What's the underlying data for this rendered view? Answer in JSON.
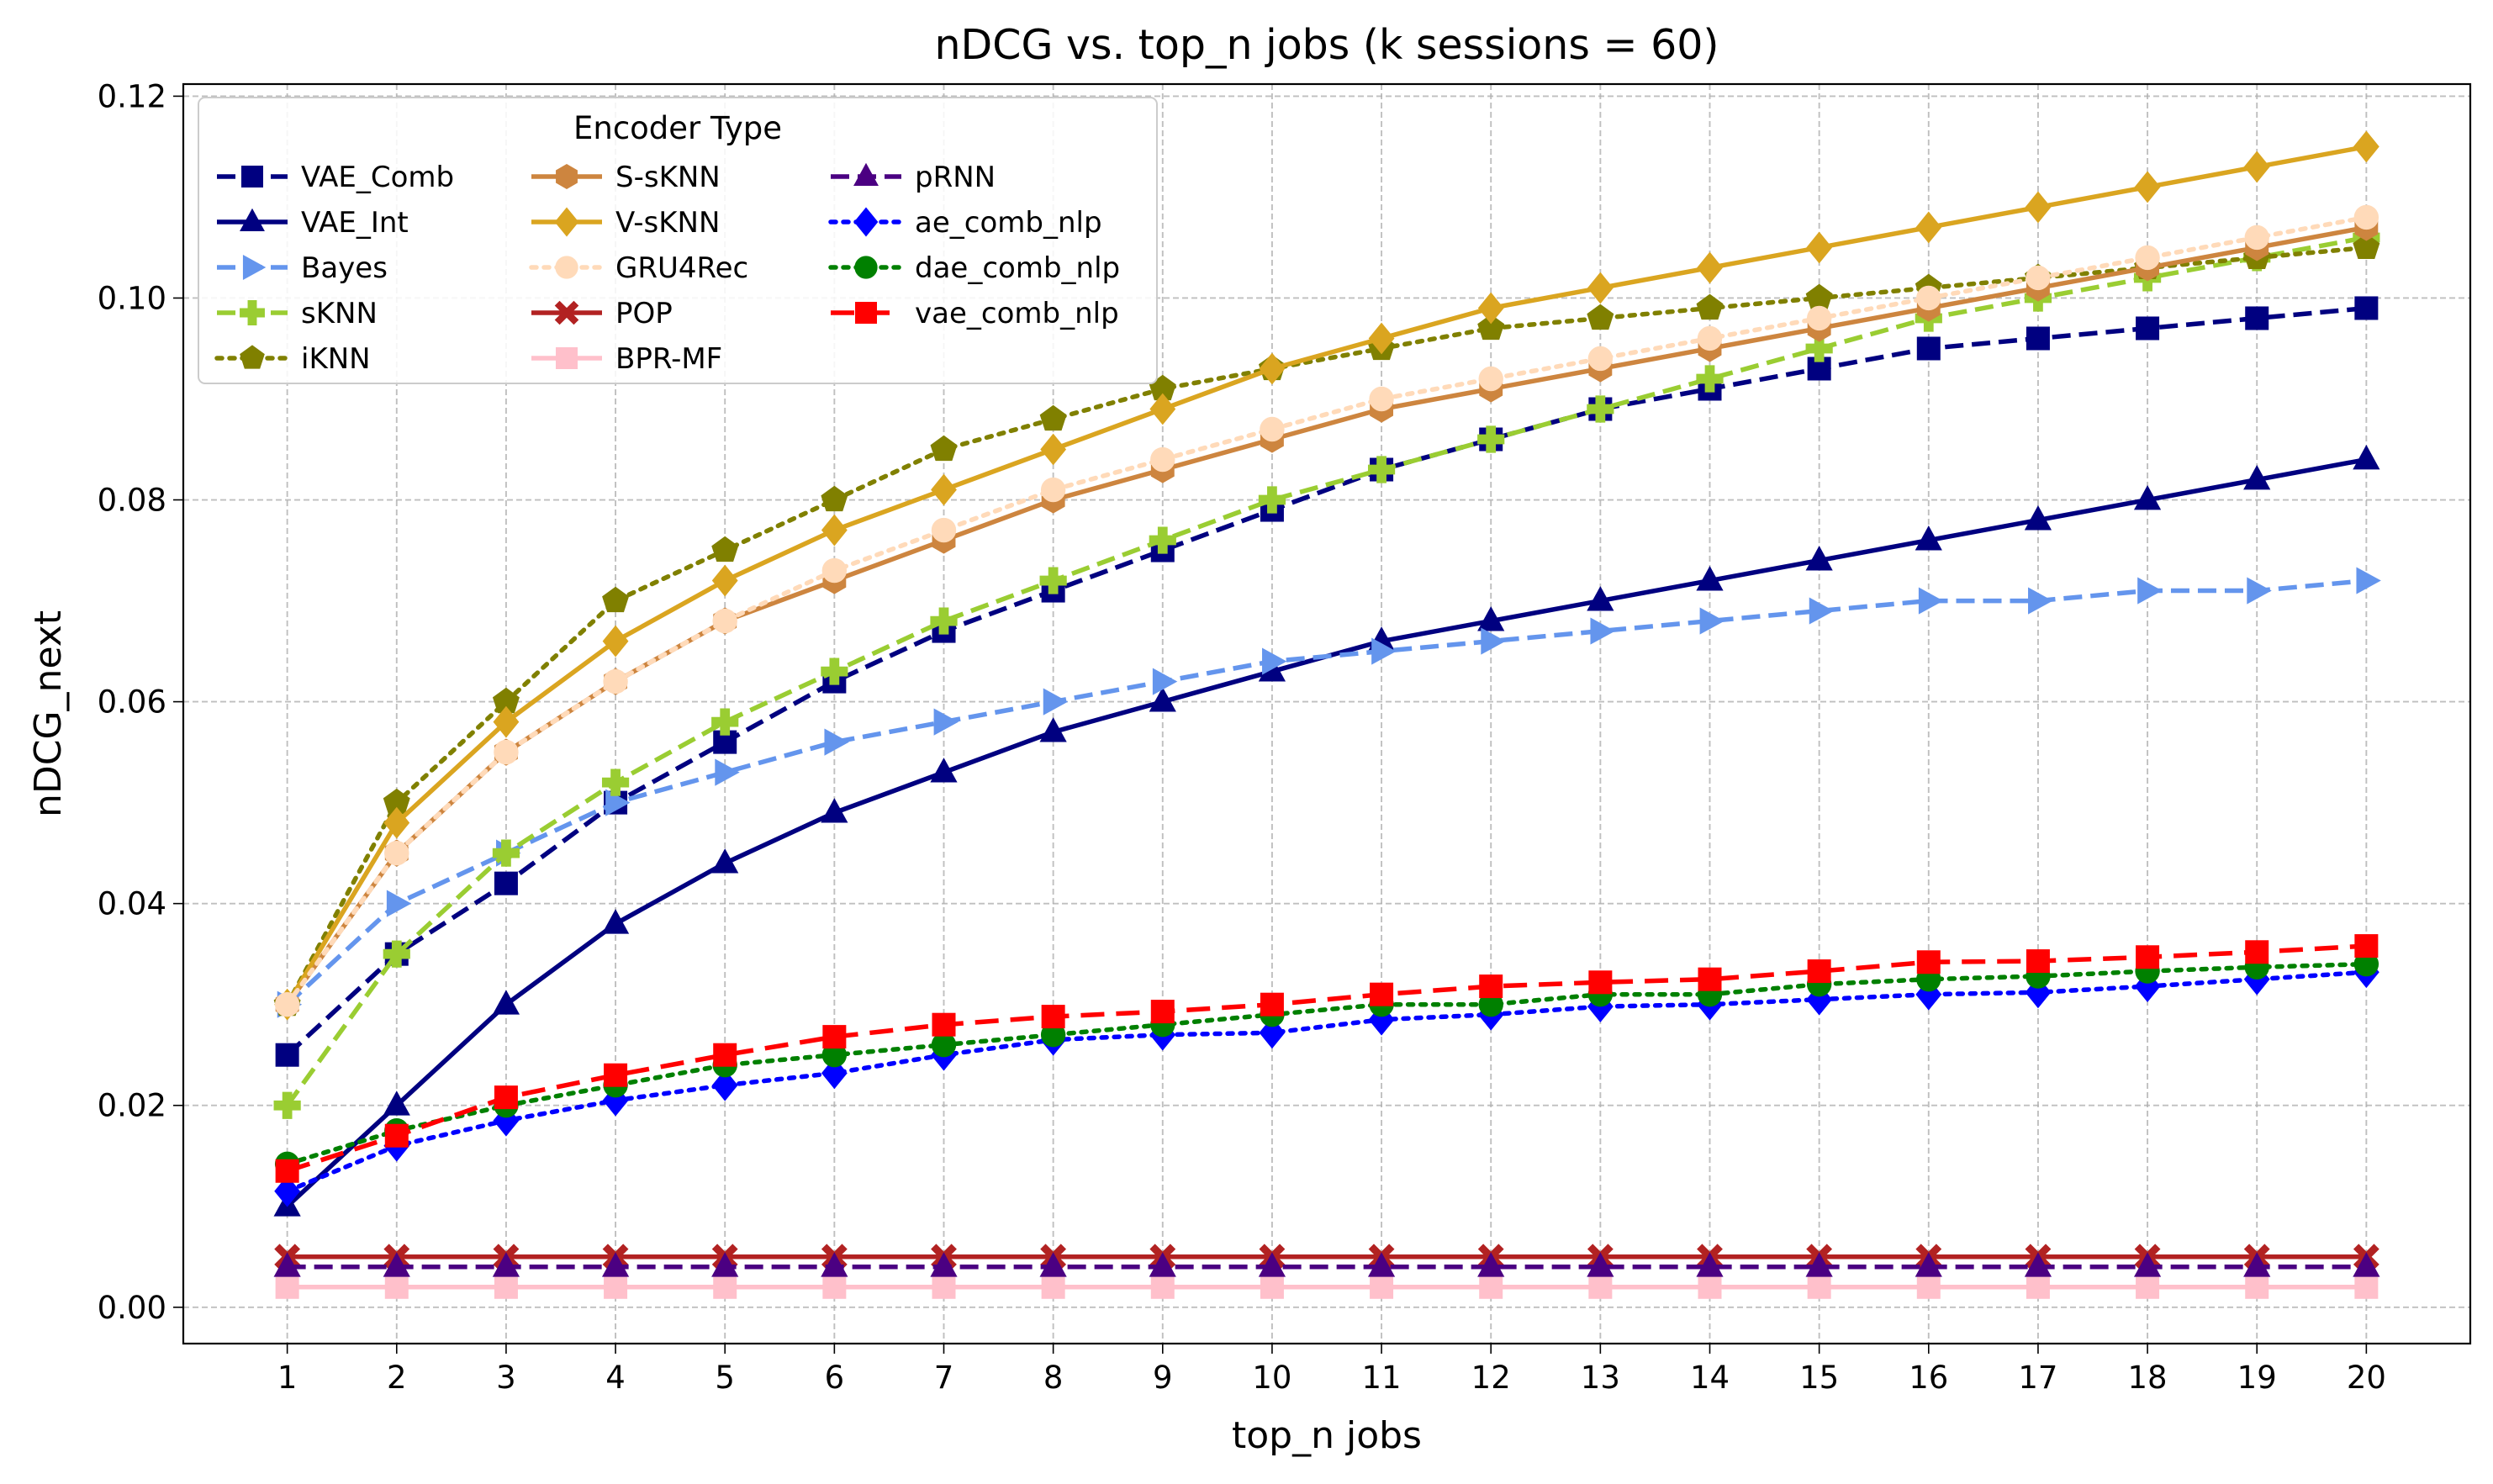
{
  "chart_data": {
    "type": "line",
    "title": "nDCG vs. top_n jobs (k sessions = 60)",
    "xlabel": "top_n jobs",
    "ylabel": "nDCG_next",
    "x": [
      1,
      2,
      3,
      4,
      5,
      6,
      7,
      8,
      9,
      10,
      11,
      12,
      13,
      14,
      15,
      16,
      17,
      18,
      19,
      20
    ],
    "xlim": [
      0.05,
      20.95
    ],
    "ylim": [
      -0.0036,
      0.1212
    ],
    "yticks": [
      0.0,
      0.02,
      0.04,
      0.06,
      0.08,
      0.1,
      0.12
    ],
    "ytick_labels": [
      "0.00",
      "0.02",
      "0.04",
      "0.06",
      "0.08",
      "0.10",
      "0.12"
    ],
    "xtick_labels": [
      "1",
      "2",
      "3",
      "4",
      "5",
      "6",
      "7",
      "8",
      "9",
      "10",
      "11",
      "12",
      "13",
      "14",
      "15",
      "16",
      "17",
      "18",
      "19",
      "20"
    ],
    "grid": true,
    "legend": {
      "title": "Encoder Type",
      "placement": "top-left",
      "columns": 3
    },
    "series": [
      {
        "name": "VAE_Comb",
        "color": "#000080",
        "marker": "square",
        "line": "dashed",
        "values": [
          0.025,
          0.035,
          0.042,
          0.05,
          0.056,
          0.062,
          0.067,
          0.071,
          0.075,
          0.079,
          0.083,
          0.086,
          0.089,
          0.091,
          0.093,
          0.095,
          0.096,
          0.097,
          0.098,
          0.099
        ]
      },
      {
        "name": "VAE_Int",
        "color": "#000080",
        "marker": "triangle",
        "line": "solid",
        "values": [
          0.01,
          0.02,
          0.03,
          0.038,
          0.044,
          0.049,
          0.053,
          0.057,
          0.06,
          0.063,
          0.066,
          0.068,
          0.07,
          0.072,
          0.074,
          0.076,
          0.078,
          0.08,
          0.082,
          0.084
        ]
      },
      {
        "name": "Bayes",
        "color": "#6495ED",
        "marker": "triangle-right",
        "line": "dashed",
        "values": [
          0.03,
          0.04,
          0.045,
          0.05,
          0.053,
          0.056,
          0.058,
          0.06,
          0.062,
          0.064,
          0.065,
          0.066,
          0.067,
          0.068,
          0.069,
          0.07,
          0.07,
          0.071,
          0.071,
          0.072
        ]
      },
      {
        "name": "sKNN",
        "color": "#9ACD32",
        "marker": "plus",
        "line": "dashed",
        "values": [
          0.02,
          0.035,
          0.045,
          0.052,
          0.058,
          0.063,
          0.068,
          0.072,
          0.076,
          0.08,
          0.083,
          0.086,
          0.089,
          0.092,
          0.095,
          0.098,
          0.1,
          0.102,
          0.104,
          0.106
        ]
      },
      {
        "name": "iKNN",
        "color": "#808000",
        "marker": "pentagon",
        "line": "dotted",
        "values": [
          0.03,
          0.05,
          0.06,
          0.07,
          0.075,
          0.08,
          0.085,
          0.088,
          0.091,
          0.093,
          0.095,
          0.097,
          0.098,
          0.099,
          0.1,
          0.101,
          0.102,
          0.103,
          0.104,
          0.105
        ]
      },
      {
        "name": "S-sKNN",
        "color": "#CD853F",
        "marker": "hexagon",
        "line": "solid",
        "values": [
          0.03,
          0.045,
          0.055,
          0.062,
          0.068,
          0.072,
          0.076,
          0.08,
          0.083,
          0.086,
          0.089,
          0.091,
          0.093,
          0.095,
          0.097,
          0.099,
          0.101,
          0.103,
          0.105,
          0.107
        ]
      },
      {
        "name": "V-sKNN",
        "color": "#DAA520",
        "marker": "diamond",
        "line": "solid",
        "values": [
          0.03,
          0.048,
          0.058,
          0.066,
          0.072,
          0.077,
          0.081,
          0.085,
          0.089,
          0.093,
          0.096,
          0.099,
          0.101,
          0.103,
          0.105,
          0.107,
          0.109,
          0.111,
          0.113,
          0.115
        ]
      },
      {
        "name": "GRU4Rec",
        "color": "#FFDAB9",
        "marker": "circle",
        "line": "dotted",
        "values": [
          0.03,
          0.045,
          0.055,
          0.062,
          0.068,
          0.073,
          0.077,
          0.081,
          0.084,
          0.087,
          0.09,
          0.092,
          0.094,
          0.096,
          0.098,
          0.1,
          0.102,
          0.104,
          0.106,
          0.108
        ]
      },
      {
        "name": "POP",
        "color": "#B22222",
        "marker": "x-filled",
        "line": "solid",
        "values": [
          0.005,
          0.005,
          0.005,
          0.005,
          0.005,
          0.005,
          0.005,
          0.005,
          0.005,
          0.005,
          0.005,
          0.005,
          0.005,
          0.005,
          0.005,
          0.005,
          0.005,
          0.005,
          0.005,
          0.005
        ]
      },
      {
        "name": "BPR-MF",
        "color": "#FFC0CB",
        "marker": "square",
        "line": "solid",
        "values": [
          0.002,
          0.002,
          0.002,
          0.002,
          0.002,
          0.002,
          0.002,
          0.002,
          0.002,
          0.002,
          0.002,
          0.002,
          0.002,
          0.002,
          0.002,
          0.002,
          0.002,
          0.002,
          0.002,
          0.002
        ]
      },
      {
        "name": "pRNN",
        "color": "#4B0082",
        "marker": "triangle",
        "line": "dashed",
        "values": [
          0.004,
          0.004,
          0.004,
          0.004,
          0.004,
          0.004,
          0.004,
          0.004,
          0.004,
          0.004,
          0.004,
          0.004,
          0.004,
          0.004,
          0.004,
          0.004,
          0.004,
          0.004,
          0.004,
          0.004
        ]
      },
      {
        "name": "ae_comb_nlp",
        "color": "#0000FF",
        "marker": "diamond",
        "line": "dotted",
        "values": [
          0.0115,
          0.016,
          0.0185,
          0.0205,
          0.022,
          0.0232,
          0.025,
          0.0265,
          0.027,
          0.0272,
          0.0285,
          0.029,
          0.0298,
          0.03,
          0.0305,
          0.031,
          0.0312,
          0.0318,
          0.0325,
          0.0332
        ]
      },
      {
        "name": "dae_comb_nlp",
        "color": "#008000",
        "marker": "circle",
        "line": "dotted",
        "values": [
          0.0142,
          0.0175,
          0.02,
          0.022,
          0.024,
          0.025,
          0.026,
          0.027,
          0.028,
          0.029,
          0.03,
          0.03,
          0.031,
          0.031,
          0.032,
          0.0325,
          0.0328,
          0.0333,
          0.0337,
          0.034
        ]
      },
      {
        "name": "vae_comb_nlp",
        "color": "#FF0000",
        "marker": "square",
        "line": "dashed-long",
        "values": [
          0.0135,
          0.017,
          0.0208,
          0.023,
          0.025,
          0.0268,
          0.028,
          0.0288,
          0.0293,
          0.03,
          0.031,
          0.0318,
          0.0322,
          0.0325,
          0.0333,
          0.0342,
          0.0343,
          0.0347,
          0.0352,
          0.0358
        ]
      }
    ]
  }
}
